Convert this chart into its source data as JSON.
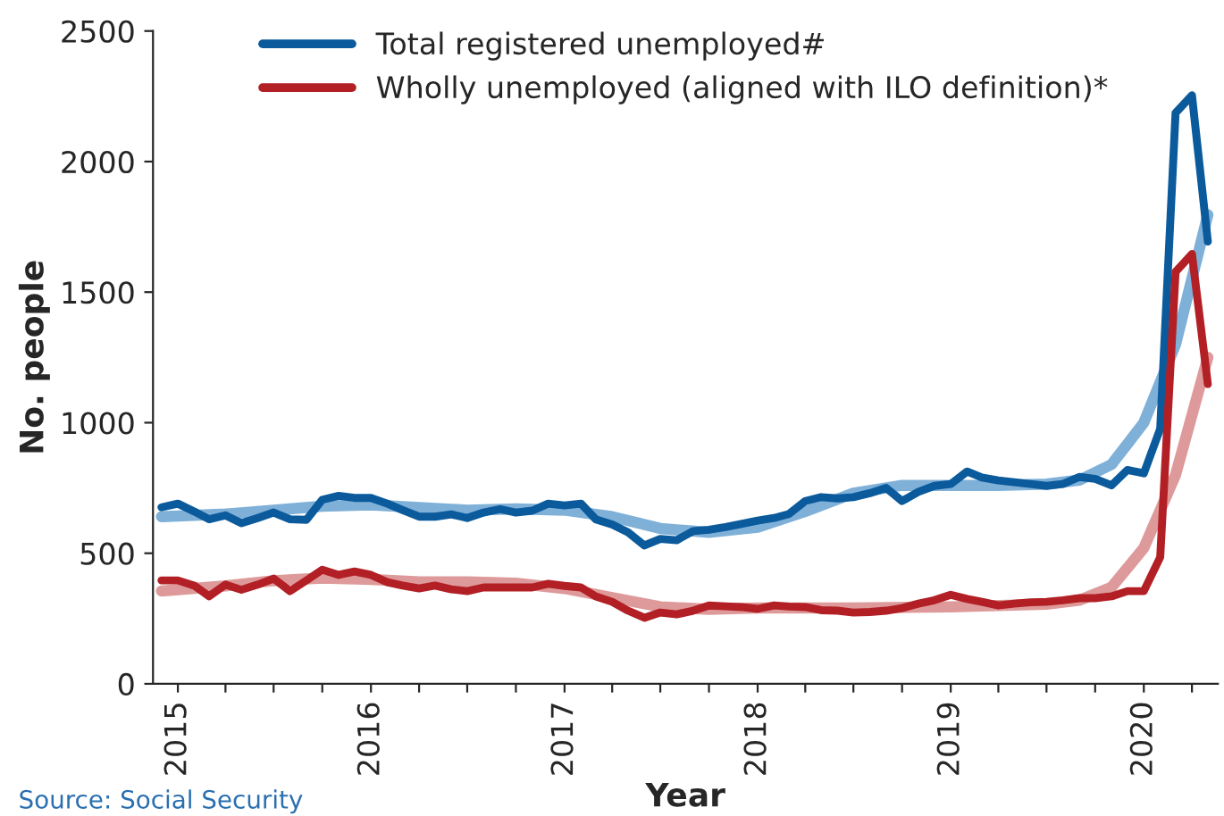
{
  "chart_data": {
    "type": "line",
    "xlabel": "Year",
    "ylabel": "No. people",
    "annotations": [
      "Source: Social Security"
    ],
    "xlim": [
      "2014-11-15",
      "2020-05-20"
    ],
    "xticks": [
      {
        "value": "2015-01",
        "label": "2015"
      },
      {
        "value": "2015-04",
        "label": null
      },
      {
        "value": "2015-07",
        "label": null
      },
      {
        "value": "2015-10",
        "label": null
      },
      {
        "value": "2016-01",
        "label": "2016"
      },
      {
        "value": "2016-04",
        "label": null
      },
      {
        "value": "2016-07",
        "label": null
      },
      {
        "value": "2016-10",
        "label": null
      },
      {
        "value": "2017-01",
        "label": "2017"
      },
      {
        "value": "2017-04",
        "label": null
      },
      {
        "value": "2017-07",
        "label": null
      },
      {
        "value": "2017-10",
        "label": null
      },
      {
        "value": "2018-01",
        "label": "2018"
      },
      {
        "value": "2018-04",
        "label": null
      },
      {
        "value": "2018-07",
        "label": null
      },
      {
        "value": "2018-10",
        "label": null
      },
      {
        "value": "2019-01",
        "label": "2019"
      },
      {
        "value": "2019-04",
        "label": null
      },
      {
        "value": "2019-07",
        "label": null
      },
      {
        "value": "2019-10",
        "label": null
      },
      {
        "value": "2020-01",
        "label": "2020"
      },
      {
        "value": "2020-04",
        "label": null
      }
    ],
    "ylim": [
      0,
      2500
    ],
    "yticks": [
      0,
      500,
      1000,
      1500,
      2000,
      2500
    ],
    "grid": false,
    "legend": "top",
    "marker": "none",
    "line_style": "solid",
    "series": [
      {
        "color": "#7fb0d8",
        "x": [
          "2014-12",
          "2015-04",
          "2015-07",
          "2015-10",
          "2016-01",
          "2016-04",
          "2016-07",
          "2016-10",
          "2017-01",
          "2017-04",
          "2017-07",
          "2017-10",
          "2018-01",
          "2018-04",
          "2018-07",
          "2018-10",
          "2019-01",
          "2019-04",
          "2019-07",
          "2019-09",
          "2019-11",
          "2020-01",
          "2020-03",
          "2020-05"
        ],
        "values": [
          640,
          650,
          665,
          680,
          685,
          675,
          665,
          670,
          665,
          640,
          595,
          580,
          600,
          660,
          730,
          760,
          760,
          760,
          765,
          780,
          840,
          1000,
          1300,
          1796
        ]
      },
      {
        "color": "#de9a9a",
        "x": [
          "2014-12",
          "2015-04",
          "2015-07",
          "2015-10",
          "2016-01",
          "2016-04",
          "2016-07",
          "2016-10",
          "2017-01",
          "2017-04",
          "2017-07",
          "2017-10",
          "2018-01",
          "2018-07",
          "2019-01",
          "2019-07",
          "2019-09",
          "2019-11",
          "2020-01",
          "2020-03",
          "2020-05"
        ],
        "values": [
          355,
          375,
          395,
          405,
          400,
          390,
          390,
          385,
          365,
          330,
          295,
          285,
          290,
          290,
          295,
          305,
          320,
          370,
          520,
          800,
          1250
        ]
      },
      {
        "name": "Total registered unemployed#",
        "color": "#0a5a9c",
        "values": [
          676,
          690,
          660,
          630,
          645,
          615,
          635,
          656,
          630,
          628,
          705,
          720,
          712,
          712,
          690,
          665,
          640,
          640,
          649,
          635,
          656,
          669,
          656,
          663,
          690,
          683,
          690,
          630,
          610,
          580,
          530,
          555,
          550,
          585,
          590,
          600,
          612,
          625,
          635,
          650,
          700,
          715,
          710,
          715,
          730,
          750,
          700,
          735,
          758,
          765,
          813,
          790,
          779,
          772,
          765,
          758,
          765,
          792,
          785,
          760,
          819,
          806,
          977,
          2186,
          2254,
          1694
        ]
      },
      {
        "name": "Wholly unemployed (aligned with ILO definition)*",
        "color": "#b22025",
        "values": [
          396,
          396,
          376,
          335,
          380,
          360,
          380,
          403,
          355,
          396,
          437,
          417,
          430,
          417,
          389,
          376,
          365,
          376,
          362,
          355,
          369,
          369,
          369,
          369,
          383,
          375,
          369,
          335,
          314,
          280,
          253,
          273,
          266,
          280,
          300,
          297,
          294,
          287,
          300,
          296,
          294,
          282,
          280,
          273,
          275,
          280,
          290,
          307,
          320,
          341,
          325,
          314,
          300,
          307,
          312,
          314,
          320,
          328,
          328,
          335,
          355,
          355,
          485,
          1578,
          1646,
          1148
        ]
      }
    ],
    "x": [
      "2014-12",
      "2015-01",
      "2015-02",
      "2015-03",
      "2015-04",
      "2015-05",
      "2015-06",
      "2015-07",
      "2015-08",
      "2015-09",
      "2015-10",
      "2015-11",
      "2015-12",
      "2016-01",
      "2016-02",
      "2016-03",
      "2016-04",
      "2016-05",
      "2016-06",
      "2016-07",
      "2016-08",
      "2016-09",
      "2016-10",
      "2016-11",
      "2016-12",
      "2017-01",
      "2017-02",
      "2017-03",
      "2017-04",
      "2017-05",
      "2017-06",
      "2017-07",
      "2017-08",
      "2017-09",
      "2017-10",
      "2017-11",
      "2017-12",
      "2018-01",
      "2018-02",
      "2018-03",
      "2018-04",
      "2018-05",
      "2018-06",
      "2018-07",
      "2018-08",
      "2018-09",
      "2018-10",
      "2018-11",
      "2018-12",
      "2019-01",
      "2019-02",
      "2019-03",
      "2019-04",
      "2019-05",
      "2019-06",
      "2019-07",
      "2019-08",
      "2019-09",
      "2019-10",
      "2019-11",
      "2019-12",
      "2020-01",
      "2020-02",
      "2020-03",
      "2020-04",
      "2020-05"
    ]
  }
}
